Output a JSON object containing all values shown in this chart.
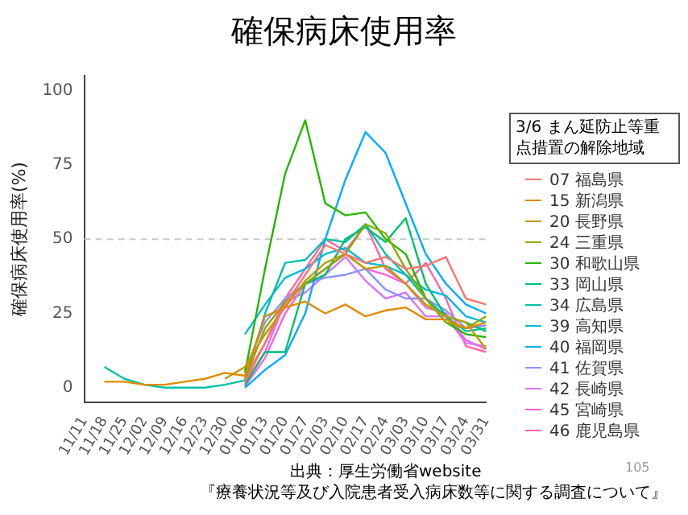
{
  "chart_data": {
    "type": "line",
    "title": "確保病床使用率",
    "ylabel": "確保病床使用率(%)",
    "legend_title": "3/6 まん延防止等重点措置の解除地域",
    "legend": "right",
    "grid": false,
    "marker": "none",
    "line_style": "solid",
    "categories": [
      "11/11",
      "11/18",
      "11/25",
      "12/02",
      "12/09",
      "12/16",
      "12/23",
      "12/30",
      "01/06",
      "01/13",
      "01/20",
      "01/27",
      "02/03",
      "02/10",
      "02/17",
      "02/24",
      "03/03",
      "03/10",
      "03/17",
      "03/24",
      "03/31"
    ],
    "ylim": [
      -5,
      105
    ],
    "yticks": [
      0,
      25,
      50,
      75,
      100
    ],
    "ref_lines": [
      {
        "axis": "y",
        "value": 50,
        "color": "#c8c8c8",
        "line_style": "dashed"
      }
    ],
    "annotations": [
      "出典：厚生労働省website",
      "『療養状況等及び入院患者受入病床数等に関する調査について』",
      "105"
    ],
    "series": [
      {
        "name": "07 福島県",
        "color": "#f8766d",
        "values": [
          null,
          null,
          null,
          null,
          null,
          null,
          null,
          null,
          2,
          15,
          28,
          38,
          48,
          45,
          42,
          44,
          40,
          41,
          44,
          30,
          28
        ]
      },
      {
        "name": "15 新潟県",
        "color": "#e18a00",
        "values": [
          null,
          2,
          2,
          1,
          1,
          2,
          3,
          5,
          4,
          24,
          27,
          29,
          25,
          28,
          24,
          26,
          27,
          23,
          23,
          20,
          22
        ]
      },
      {
        "name": "20 長野県",
        "color": "#be9c00",
        "values": [
          null,
          null,
          null,
          null,
          null,
          null,
          null,
          3,
          7,
          18,
          27,
          36,
          42,
          45,
          40,
          41,
          35,
          28,
          24,
          22,
          13
        ]
      },
      {
        "name": "24 三重県",
        "color": "#8cab00",
        "values": [
          null,
          null,
          null,
          null,
          null,
          null,
          null,
          null,
          3,
          20,
          29,
          35,
          40,
          45,
          55,
          52,
          40,
          30,
          22,
          20,
          24
        ]
      },
      {
        "name": "30 和歌山県",
        "color": "#24b700",
        "values": [
          null,
          null,
          null,
          null,
          null,
          null,
          null,
          null,
          5,
          40,
          72,
          90,
          62,
          58,
          59,
          50,
          45,
          30,
          22,
          18,
          17
        ]
      },
      {
        "name": "33 岡山県",
        "color": "#00be70",
        "values": [
          null,
          null,
          null,
          null,
          null,
          null,
          null,
          null,
          1,
          12,
          12,
          35,
          38,
          50,
          54,
          49,
          57,
          35,
          24,
          22,
          19
        ]
      },
      {
        "name": "34 広島県",
        "color": "#00c1ab",
        "values": [
          null,
          7,
          3,
          1,
          0,
          0,
          0,
          1,
          2.5,
          25,
          42,
          43,
          50,
          49,
          55,
          45,
          38,
          30,
          24,
          19,
          20
        ]
      },
      {
        "name": "39 高知県",
        "color": "#00bbda",
        "values": [
          null,
          null,
          null,
          null,
          null,
          null,
          null,
          null,
          18,
          28,
          37,
          40,
          45,
          47,
          42,
          41,
          38,
          33,
          31,
          24,
          22
        ]
      },
      {
        "name": "40 福岡県",
        "color": "#00acfc",
        "values": [
          null,
          null,
          null,
          null,
          null,
          null,
          null,
          null,
          0,
          6,
          11,
          25,
          50,
          70,
          86,
          79,
          62,
          45,
          35,
          28,
          25
        ]
      },
      {
        "name": "41 佐賀県",
        "color": "#8b93ff",
        "values": [
          null,
          null,
          null,
          null,
          null,
          null,
          null,
          null,
          6,
          22,
          30,
          35,
          37,
          38,
          40,
          33,
          30,
          30,
          26,
          20,
          21
        ]
      },
      {
        "name": "42 長崎県",
        "color": "#d575fe",
        "values": [
          null,
          null,
          null,
          null,
          null,
          null,
          null,
          null,
          1.5,
          12,
          29,
          32,
          38,
          44,
          36,
          30,
          32,
          24,
          24,
          15,
          14
        ]
      },
      {
        "name": "45 宮崎県",
        "color": "#f962dd",
        "values": [
          null,
          null,
          null,
          null,
          null,
          null,
          null,
          null,
          0.5,
          10,
          25,
          35,
          40,
          45,
          40,
          38,
          35,
          27,
          25,
          16,
          13
        ]
      },
      {
        "name": "46 鹿児島県",
        "color": "#ff65ac",
        "values": [
          null,
          null,
          null,
          null,
          null,
          null,
          null,
          null,
          3.5,
          15,
          30,
          40,
          50,
          46,
          55,
          40,
          35,
          42,
          30,
          14,
          12
        ]
      }
    ]
  }
}
